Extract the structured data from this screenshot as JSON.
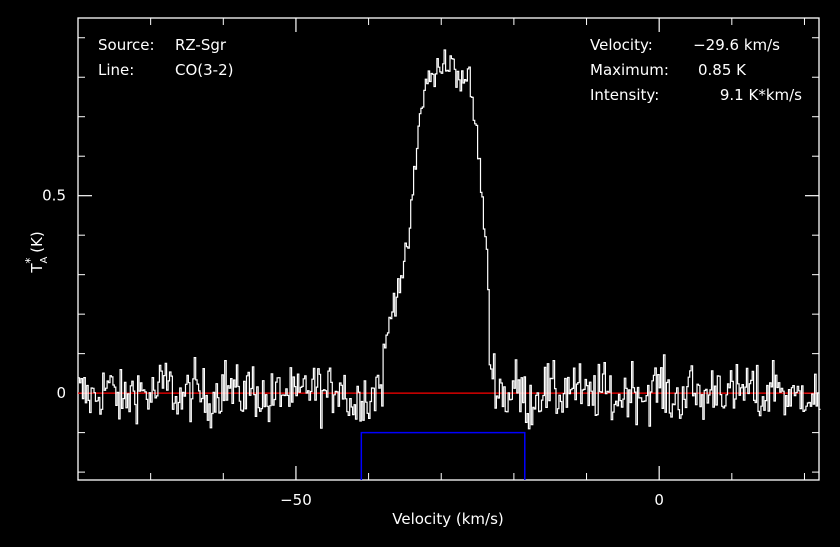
{
  "info": {
    "source_label": "Source:",
    "source_value": "RZ-Sgr",
    "line_label": "Line:",
    "line_value": "CO(3-2)",
    "velocity_label": "Velocity:",
    "velocity_value": "−29.6 km/s",
    "maximum_label": "Maximum:",
    "maximum_value": "0.85 K",
    "intensity_label": "Intensity:",
    "intensity_value": "9.1 K*km/s"
  },
  "chart_data": {
    "type": "line",
    "title": "",
    "xlabel": "Velocity (km/s)",
    "ylabel": "T*A (K)",
    "xlim": [
      -80,
      22
    ],
    "ylim": [
      -0.22,
      0.95
    ],
    "xticks": [
      -50,
      0
    ],
    "xtick_labels": [
      "−50",
      "0"
    ],
    "yticks": [
      0,
      0.5
    ],
    "ytick_labels": [
      "0",
      "0.5"
    ],
    "grid": false,
    "colors": {
      "background": "#000000",
      "axes": "#ffffff",
      "spectrum": "#ffffff",
      "baseline": "#ff0000",
      "window": "#0000ff"
    },
    "baseline": 0,
    "integration_window": {
      "x": [
        -41,
        -18.5
      ],
      "y_level": -0.1
    },
    "series": [
      {
        "x": [
          -80,
          -78,
          -76,
          -74,
          -72,
          -70,
          -68,
          -66,
          -64,
          -62,
          -60,
          -58,
          -56,
          -54,
          -52,
          -50,
          -48,
          -46,
          -44,
          -42,
          -41,
          -40,
          -39,
          -38,
          -37,
          -36,
          -35.5,
          -35,
          -34.5,
          -34,
          -33.5,
          -33,
          -32.5,
          -32,
          -31.5,
          -31,
          -30.5,
          -30,
          -29.5,
          -29,
          -28.5,
          -28,
          -27.5,
          -27,
          -26.5,
          -26,
          -25.5,
          -25,
          -24.5,
          -24,
          -23.5,
          -23,
          -22,
          -21,
          -20,
          -18,
          -16,
          -14,
          -12,
          -10,
          -8,
          -6,
          -4,
          -2,
          0,
          2,
          4,
          6,
          8,
          10,
          12,
          14,
          16,
          18,
          20,
          22
        ],
        "y": [
          0.01,
          -0.04,
          0.06,
          -0.07,
          0.04,
          -0.03,
          0.08,
          -0.05,
          0.03,
          -0.06,
          0.07,
          -0.02,
          0.05,
          -0.08,
          0.02,
          -0.05,
          0.06,
          -0.03,
          0.09,
          -0.12,
          0.04,
          -0.06,
          0.05,
          0.09,
          0.2,
          0.28,
          0.3,
          0.33,
          0.4,
          0.5,
          0.6,
          0.7,
          0.76,
          0.79,
          0.82,
          0.78,
          0.84,
          0.8,
          0.86,
          0.81,
          0.85,
          0.8,
          0.82,
          0.78,
          0.83,
          0.75,
          0.7,
          0.62,
          0.5,
          0.38,
          0.26,
          0.15,
          0.04,
          -0.05,
          0.06,
          -0.08,
          0.04,
          -0.03,
          0.07,
          -0.05,
          0.03,
          -0.06,
          0.05,
          -0.02,
          0.06,
          -0.07,
          0.04,
          -0.05,
          0.08,
          -0.03,
          0.05,
          -0.06,
          0.1,
          -0.08,
          0.03,
          -0.05
        ]
      }
    ]
  }
}
